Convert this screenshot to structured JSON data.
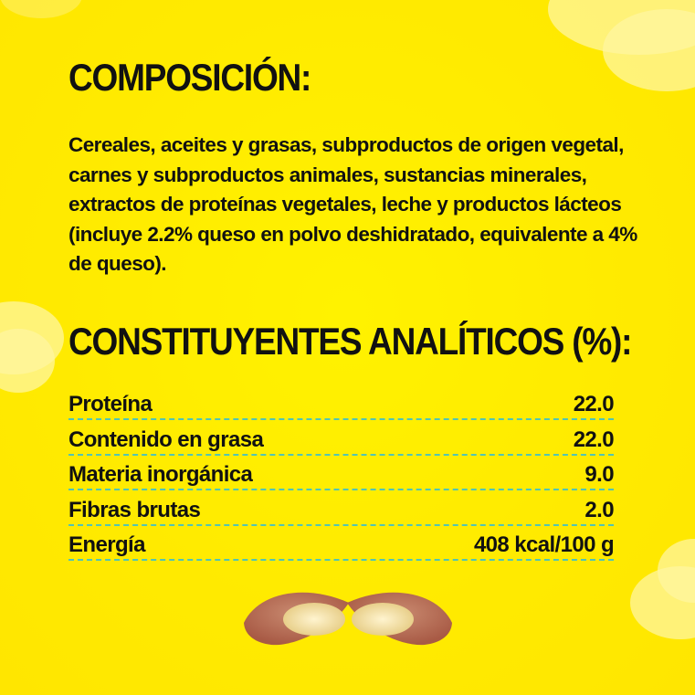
{
  "composition": {
    "title": "COMPOSICIÓN:",
    "text": "Cereales, aceites y grasas, subproductos de origen vegetal, carnes y subproductos animales, sustancias minerales, extractos de proteínas vegetales, leche y productos lácteos (incluye 2.2% queso en polvo deshidratado, equivalente a 4% de queso)."
  },
  "analytical": {
    "title": "CONSTITUYENTES ANALÍTICOS (%):",
    "rows": [
      {
        "label": "Proteína",
        "value": "22.0"
      },
      {
        "label": "Contenido en grasa",
        "value": "22.0"
      },
      {
        "label": "Materia inorgánica",
        "value": "9.0"
      },
      {
        "label": "Fibras brutas",
        "value": "2.0"
      },
      {
        "label": "Energía",
        "value": "408 kcal/100 g"
      }
    ]
  },
  "colors": {
    "background": "#ffec00",
    "divider": "#52c4b4",
    "text": "#111111"
  }
}
